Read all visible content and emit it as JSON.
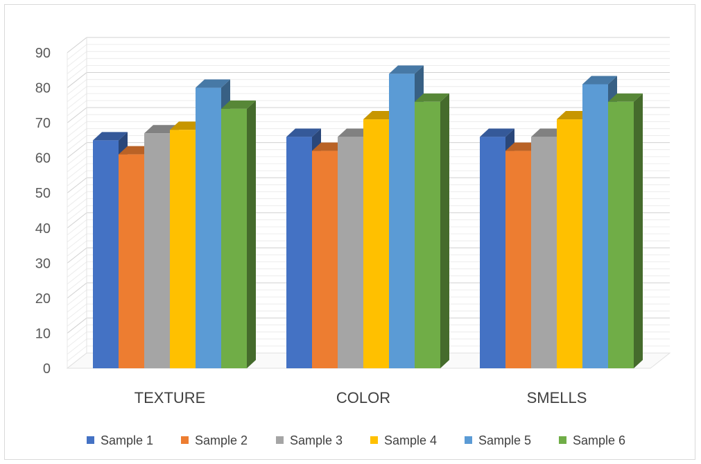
{
  "chart_data": {
    "type": "bar",
    "style": "3d-clustered-column",
    "categories": [
      "TEXTURE",
      "COLOR",
      "SMELLS"
    ],
    "series": [
      {
        "name": "Sample 1",
        "color": "#4472c4",
        "values": [
          65,
          66,
          66
        ]
      },
      {
        "name": "Sample 2",
        "color": "#ed7d31",
        "values": [
          61,
          62,
          62
        ]
      },
      {
        "name": "Sample 3",
        "color": "#a5a5a5",
        "values": [
          67,
          66,
          66
        ]
      },
      {
        "name": "Sample 4",
        "color": "#ffc000",
        "values": [
          68,
          71,
          71
        ]
      },
      {
        "name": "Sample 5",
        "color": "#5b9bd5",
        "values": [
          80,
          84,
          81
        ]
      },
      {
        "name": "Sample 6",
        "color": "#70ad47",
        "values": [
          74,
          76,
          76
        ]
      }
    ],
    "yticks": [
      0,
      10,
      20,
      30,
      40,
      50,
      60,
      70,
      80,
      90
    ],
    "ylim": [
      0,
      90
    ],
    "title": "",
    "xlabel": "",
    "ylabel": "",
    "grid": true,
    "legend": "bottom"
  }
}
